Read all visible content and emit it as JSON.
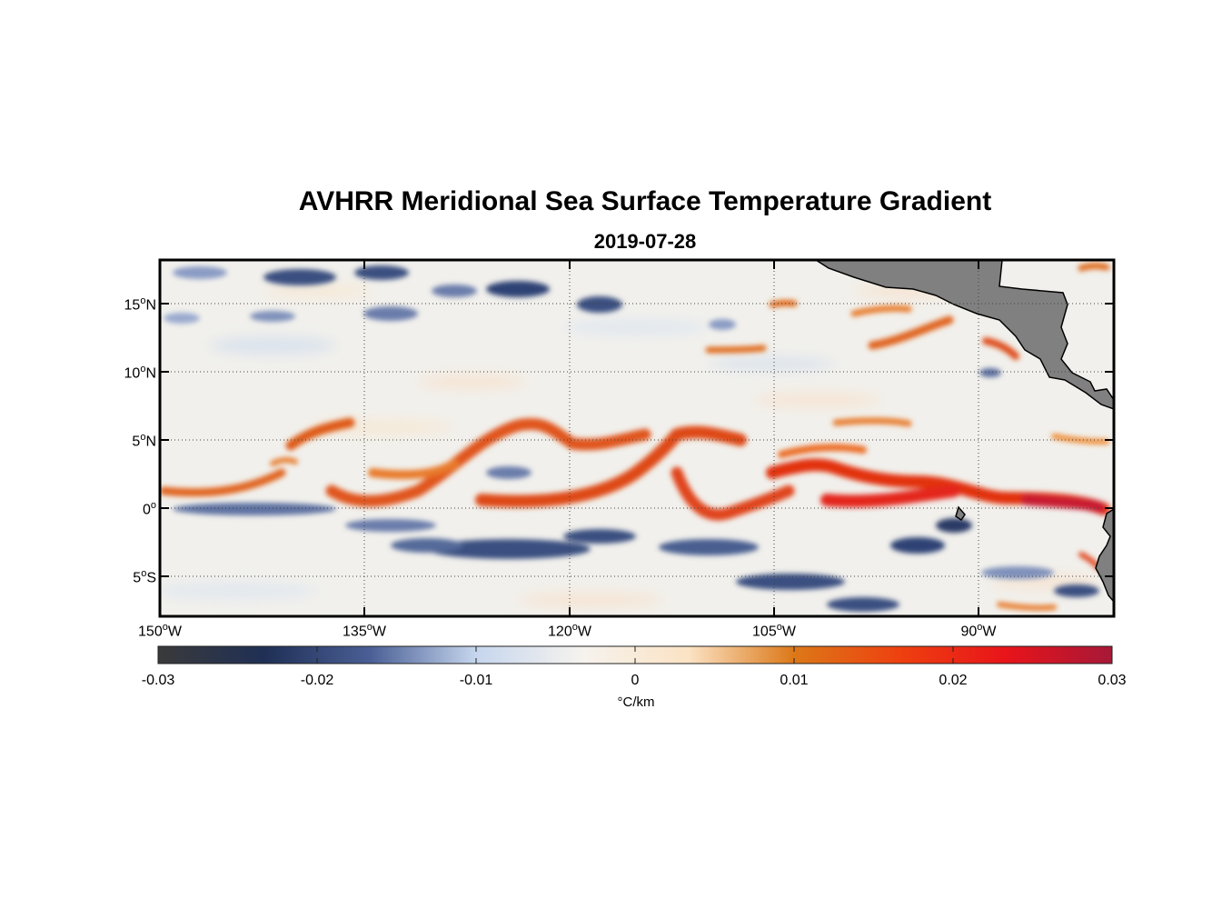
{
  "title": "AVHRR Meridional Sea Surface Temperature Gradient",
  "subtitle": "2019-07-28",
  "lat_ticks": [
    {
      "deg": "15",
      "hemi": "N"
    },
    {
      "deg": "10",
      "hemi": "N"
    },
    {
      "deg": "5",
      "hemi": "N"
    },
    {
      "deg": "0",
      "hemi": ""
    },
    {
      "deg": "5",
      "hemi": "S"
    }
  ],
  "lon_ticks": [
    {
      "deg": "150",
      "hemi": "W"
    },
    {
      "deg": "135",
      "hemi": "W"
    },
    {
      "deg": "120",
      "hemi": "W"
    },
    {
      "deg": "105",
      "hemi": "W"
    },
    {
      "deg": "90",
      "hemi": "W"
    }
  ],
  "colorbar": {
    "ticks": [
      "-0.03",
      "-0.02",
      "-0.01",
      "0",
      "0.01",
      "0.02",
      "0.03"
    ],
    "units": "°C/km",
    "colors": [
      "#3a3a3a",
      "#1f2f55",
      "#4a5f95",
      "#c6d6ee",
      "#f6f3ee",
      "#fbe3c4",
      "#dc7818",
      "#ee4010",
      "#e8141a",
      "#a61838"
    ]
  },
  "map_colors": {
    "land": "#808080",
    "coast": "#000000",
    "ocean_neutral": "#f2f1ee",
    "warm_front": "#d9440f",
    "cold_band": "#3b4f80"
  }
}
